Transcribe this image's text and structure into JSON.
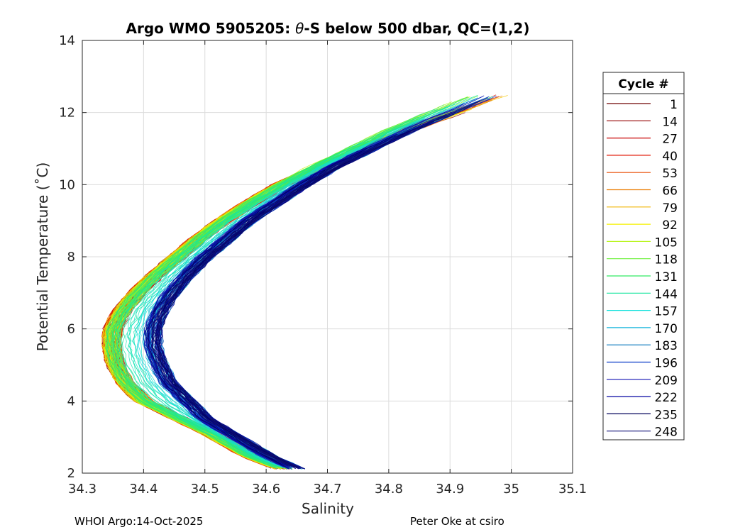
{
  "chart_data": {
    "type": "line",
    "title_parts": {
      "prefix": "Argo WMO 5905205: ",
      "symbol": "θ",
      "suffix": "-S below 500 dbar,  QC=(1,2)"
    },
    "xlabel": "Salinity",
    "ylabel": "Potential Temperature (˚C)",
    "xlim": [
      34.3,
      35.1
    ],
    "ylim": [
      2,
      14
    ],
    "xticks": [
      34.3,
      34.4,
      34.5,
      34.6,
      34.7,
      34.8,
      34.9,
      35,
      35.1
    ],
    "xtick_labels": [
      "34.3",
      "34.4",
      "34.5",
      "34.6",
      "34.7",
      "34.8",
      "34.9",
      "35",
      "35.1"
    ],
    "yticks": [
      2,
      4,
      6,
      8,
      10,
      12,
      14
    ],
    "ytick_labels": [
      "2",
      "4",
      "6",
      "8",
      "10",
      "12",
      "14"
    ],
    "grid": true,
    "legend": {
      "title": "Cycle #",
      "placement": "outside-right",
      "entries": [
        {
          "label": "1",
          "color": "#6e0000"
        },
        {
          "label": "14",
          "color": "#960000"
        },
        {
          "label": "27",
          "color": "#c80000"
        },
        {
          "label": "40",
          "color": "#e11400"
        },
        {
          "label": "53",
          "color": "#e84c00"
        },
        {
          "label": "66",
          "color": "#eb7d00"
        },
        {
          "label": "79",
          "color": "#f0b400"
        },
        {
          "label": "92",
          "color": "#f5f000"
        },
        {
          "label": "105",
          "color": "#b9f51e"
        },
        {
          "label": "118",
          "color": "#6ef03c"
        },
        {
          "label": "131",
          "color": "#32eb64"
        },
        {
          "label": "144",
          "color": "#19e6a0"
        },
        {
          "label": "157",
          "color": "#14e1dc"
        },
        {
          "label": "170",
          "color": "#14b4dc"
        },
        {
          "label": "183",
          "color": "#0a78be"
        },
        {
          "label": "196",
          "color": "#0a3cc8"
        },
        {
          "label": "209",
          "color": "#1414b4"
        },
        {
          "label": "222",
          "color": "#0000a0"
        },
        {
          "label": "235",
          "color": "#00005a"
        },
        {
          "label": "248",
          "color": "#141478"
        }
      ]
    },
    "series_template": {
      "theta": [
        2.1,
        2.5,
        3.0,
        3.5,
        4.0,
        4.5,
        5.0,
        5.5,
        6.0,
        6.5,
        7.0,
        7.5,
        8.0,
        8.5,
        9.0,
        9.5,
        10.0,
        10.5,
        11.0,
        11.5,
        12.0
      ],
      "salinity_warm_group": [
        34.63,
        34.57,
        34.52,
        34.46,
        34.4,
        34.37,
        34.355,
        34.348,
        34.35,
        34.365,
        34.39,
        34.42,
        34.455,
        34.49,
        34.53,
        34.575,
        34.625,
        34.68,
        34.74,
        34.8,
        34.87
      ],
      "salinity_cold_group": [
        34.65,
        34.6,
        34.55,
        34.5,
        34.47,
        34.44,
        34.425,
        34.415,
        34.415,
        34.425,
        34.445,
        34.47,
        34.5,
        34.535,
        34.57,
        34.615,
        34.66,
        34.71,
        34.77,
        34.83,
        34.9
      ]
    }
  },
  "footer": {
    "left": "WHOI Argo:14-Oct-2025",
    "right": "Peter Oke at csiro"
  }
}
